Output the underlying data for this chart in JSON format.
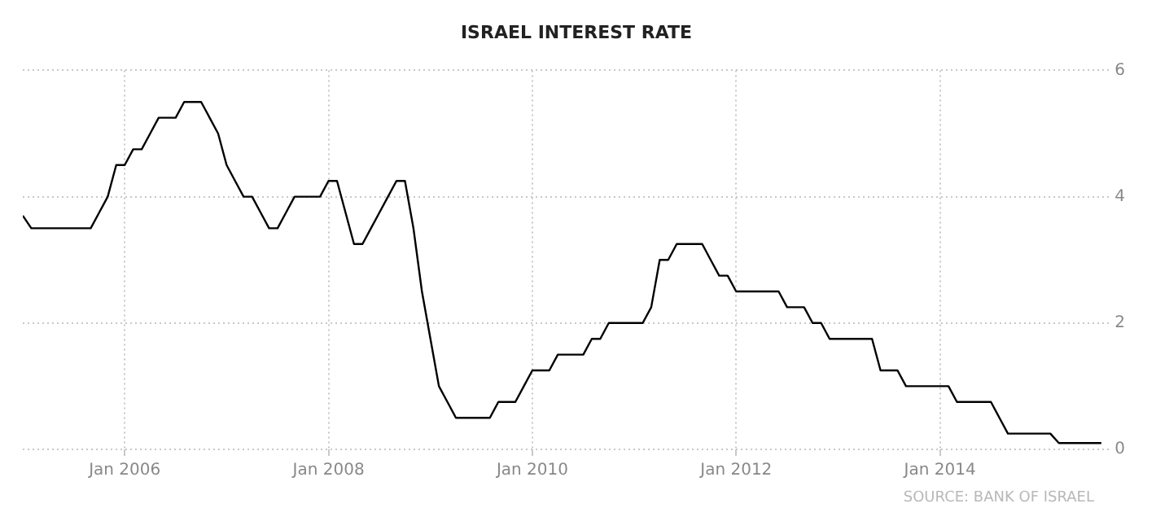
{
  "chart_data": {
    "type": "line",
    "title": "ISRAEL INTEREST RATE",
    "x": [
      "2005-01",
      "2005-02",
      "2005-09",
      "2005-10",
      "2005-11",
      "2005-12",
      "2006-01",
      "2006-02",
      "2006-03",
      "2006-04",
      "2006-05",
      "2006-07",
      "2006-08",
      "2006-10",
      "2006-11",
      "2006-12",
      "2007-01",
      "2007-02",
      "2007-03",
      "2007-04",
      "2007-05",
      "2007-06",
      "2007-07",
      "2007-08",
      "2007-09",
      "2007-12",
      "2008-01",
      "2008-02",
      "2008-03",
      "2008-04",
      "2008-05",
      "2008-06",
      "2008-07",
      "2008-08",
      "2008-09",
      "2008-10",
      "2008-11",
      "2008-12",
      "2009-01",
      "2009-02",
      "2009-03",
      "2009-04",
      "2009-08",
      "2009-09",
      "2009-11",
      "2009-12",
      "2010-01",
      "2010-03",
      "2010-04",
      "2010-07",
      "2010-08",
      "2010-09",
      "2010-10",
      "2011-02",
      "2011-03",
      "2011-04",
      "2011-05",
      "2011-06",
      "2011-09",
      "2011-10",
      "2011-11",
      "2011-12",
      "2012-01",
      "2012-06",
      "2012-07",
      "2012-09",
      "2012-10",
      "2012-11",
      "2012-12",
      "2013-05",
      "2013-06",
      "2013-08",
      "2013-09",
      "2014-02",
      "2014-03",
      "2014-07",
      "2014-08",
      "2014-09",
      "2015-02",
      "2015-03",
      "2015-08"
    ],
    "series": [
      {
        "color": "#000000",
        "values": [
          3.7,
          3.5,
          3.5,
          3.75,
          4.0,
          4.5,
          4.5,
          4.75,
          4.75,
          5.0,
          5.25,
          5.25,
          5.5,
          5.5,
          5.25,
          5.0,
          4.5,
          4.25,
          4.0,
          4.0,
          3.75,
          3.5,
          3.5,
          3.75,
          4.0,
          4.0,
          4.25,
          4.25,
          3.75,
          3.25,
          3.25,
          3.5,
          3.75,
          4.0,
          4.25,
          4.25,
          3.5,
          2.5,
          1.75,
          1.0,
          0.75,
          0.5,
          0.5,
          0.75,
          0.75,
          1.0,
          1.25,
          1.25,
          1.5,
          1.5,
          1.75,
          1.75,
          2.0,
          2.0,
          2.25,
          3.0,
          3.0,
          3.25,
          3.25,
          3.0,
          2.75,
          2.75,
          2.5,
          2.5,
          2.25,
          2.25,
          2.0,
          2.0,
          1.75,
          1.75,
          1.25,
          1.25,
          1.0,
          1.0,
          0.75,
          0.75,
          0.5,
          0.25,
          0.25,
          0.1,
          0.1
        ]
      }
    ],
    "xlim": [
      "2005-01",
      "2015-09"
    ],
    "xticks": [
      {
        "value": "2006-01",
        "label": "Jan 2006"
      },
      {
        "value": "2008-01",
        "label": "Jan 2008"
      },
      {
        "value": "2010-01",
        "label": "Jan 2010"
      },
      {
        "value": "2012-01",
        "label": "Jan 2012"
      },
      {
        "value": "2014-01",
        "label": "Jan 2014"
      }
    ],
    "ylim": [
      0,
      6
    ],
    "yticks": [
      0,
      2,
      4,
      6
    ],
    "grid": true,
    "marker": "none",
    "line_style": "solid",
    "annotations": [
      "SOURCE: BANK OF ISRAEL"
    ]
  }
}
